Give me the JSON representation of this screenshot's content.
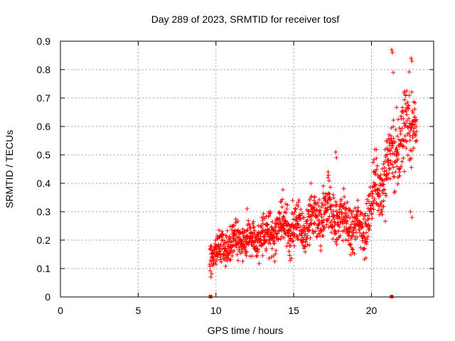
{
  "chart_data": {
    "type": "scatter",
    "title": "Day 289 of 2023, SRMTID for receiver tosf",
    "xlabel": "GPS time / hours",
    "ylabel": "SRMTID / TECUs",
    "xlim": [
      0,
      24
    ],
    "ylim": [
      0,
      0.9
    ],
    "xticks": [
      0,
      5,
      10,
      15,
      20
    ],
    "xtick_labels": [
      "0",
      "5",
      "10",
      "15",
      "20"
    ],
    "yticks": [
      0,
      0.1,
      0.2,
      0.3,
      0.4,
      0.5,
      0.6,
      0.7,
      0.8,
      0.9
    ],
    "ytick_labels": [
      "0",
      "0.1",
      "0.2",
      "0.3",
      "0.4",
      "0.5",
      "0.6",
      "0.7",
      "0.8",
      "0.9"
    ],
    "grid": true,
    "marker": "plus",
    "color": "#ff0000",
    "trend": [
      {
        "x": 9.6,
        "y": 0.15,
        "spread": 0.05
      },
      {
        "x": 10.5,
        "y": 0.17,
        "spread": 0.05
      },
      {
        "x": 11.5,
        "y": 0.2,
        "spread": 0.06
      },
      {
        "x": 12.5,
        "y": 0.2,
        "spread": 0.06
      },
      {
        "x": 13.5,
        "y": 0.23,
        "spread": 0.07
      },
      {
        "x": 14.5,
        "y": 0.25,
        "spread": 0.07
      },
      {
        "x": 15.5,
        "y": 0.24,
        "spread": 0.07
      },
      {
        "x": 16.5,
        "y": 0.27,
        "spread": 0.08
      },
      {
        "x": 17.5,
        "y": 0.3,
        "spread": 0.09
      },
      {
        "x": 18.5,
        "y": 0.25,
        "spread": 0.07
      },
      {
        "x": 19.5,
        "y": 0.24,
        "spread": 0.07
      },
      {
        "x": 20.3,
        "y": 0.38,
        "spread": 0.1
      },
      {
        "x": 21.0,
        "y": 0.45,
        "spread": 0.12
      },
      {
        "x": 21.8,
        "y": 0.55,
        "spread": 0.13
      },
      {
        "x": 22.8,
        "y": 0.65,
        "spread": 0.12
      }
    ],
    "x_range_points": [
      9.6,
      22.9
    ],
    "point_count": 1300,
    "outliers": [
      {
        "x": 21.3,
        "y": 0.87
      },
      {
        "x": 21.35,
        "y": 0.86
      },
      {
        "x": 22.55,
        "y": 0.84
      },
      {
        "x": 22.6,
        "y": 0.83
      },
      {
        "x": 21.4,
        "y": 0.79
      },
      {
        "x": 22.5,
        "y": 0.3
      },
      {
        "x": 22.6,
        "y": 0.28
      },
      {
        "x": 17.7,
        "y": 0.51
      },
      {
        "x": 17.75,
        "y": 0.49
      },
      {
        "x": 12.0,
        "y": 0.31
      },
      {
        "x": 16.1,
        "y": 0.4
      },
      {
        "x": 17.2,
        "y": 0.42
      }
    ],
    "zero_markers": [
      {
        "x": 9.65,
        "y": 0
      },
      {
        "x": 21.3,
        "y": 0
      }
    ]
  }
}
